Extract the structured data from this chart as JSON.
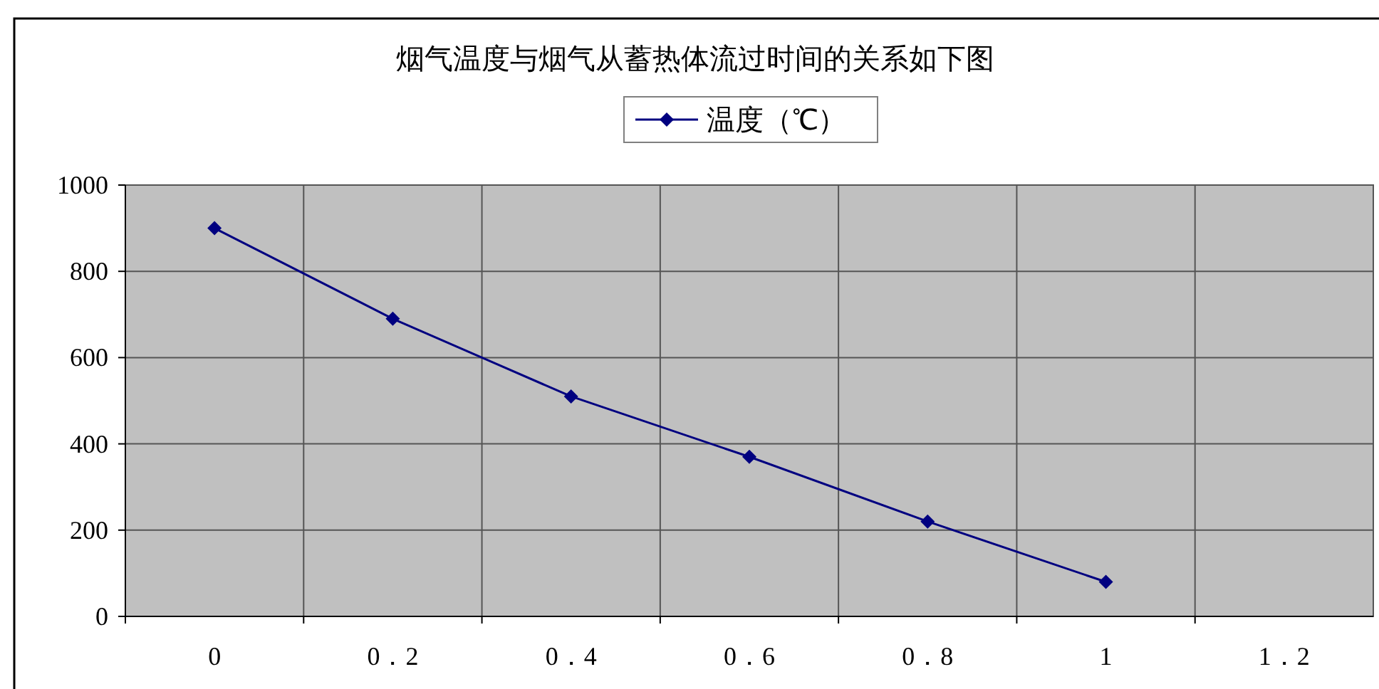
{
  "chart_data": {
    "type": "line",
    "title": "烟气温度与烟气从蓄热体流过时间的关系如下图",
    "categories": [
      "0",
      "0．2",
      "0．4",
      "0．6",
      "0．8",
      "1",
      "1．2"
    ],
    "series": [
      {
        "name": "温度（℃）",
        "color": "#000080",
        "values": [
          900,
          690,
          510,
          370,
          220,
          80,
          null
        ]
      }
    ],
    "ylim": [
      0,
      1000
    ],
    "yticks": [
      0,
      200,
      400,
      600,
      800,
      1000
    ],
    "grid": true,
    "legend": "top",
    "marker": "diamond"
  }
}
